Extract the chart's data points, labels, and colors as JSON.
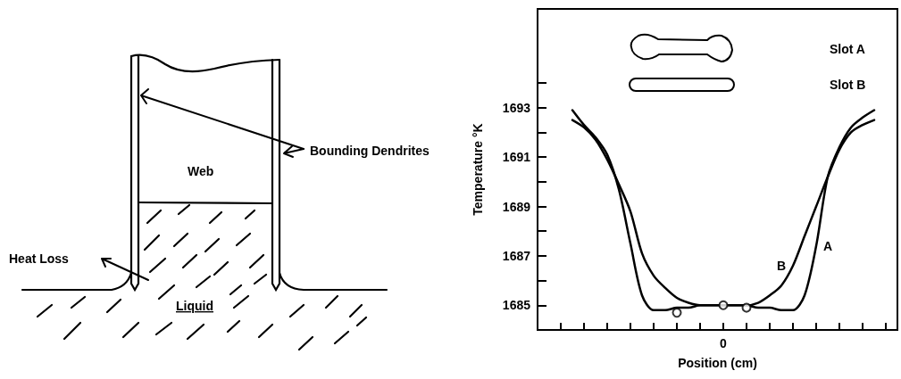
{
  "chart_data": [
    {
      "type": "other",
      "annotations": [
        "Bounding Dendrites",
        "Web",
        "Heat Loss",
        "Liquid"
      ]
    },
    {
      "type": "line",
      "ylabel": "Temperature °K",
      "xlabel": "Position (cm)",
      "annotations": [
        "Slot A",
        "Slot B"
      ],
      "categories": [
        null,
        null,
        null,
        null,
        null,
        null,
        null,
        null,
        null,
        null,
        null,
        null,
        null,
        null,
        null,
        null,
        "0",
        null,
        null,
        null,
        null,
        null,
        null,
        null,
        null,
        null,
        null,
        null,
        null,
        null,
        null,
        null
      ],
      "ylim": [
        1684,
        1697
      ],
      "yticks": [
        1685,
        {
          "value": 1686,
          "label": null
        },
        1687,
        {
          "value": 1688,
          "label": null
        },
        1689,
        {
          "value": 1690,
          "label": null
        },
        1691,
        {
          "value": 1692,
          "label": null
        },
        1693,
        {
          "value": 1694,
          "label": null
        }
      ],
      "grid": false,
      "legend": false,
      "marker": "none",
      "line_style": "solid",
      "series": [
        {
          "name": "A",
          "color": "#000000",
          "values": [
            null,
            null,
            null,
            1692.9,
            1692.3,
            1691.8,
            1691.1,
            1689.7,
            1687.5,
            1685.4,
            1684.8,
            1684.8,
            1684.9,
            1684.9,
            1685.0,
            1685.0,
            1685.0,
            1685.0,
            1685.0,
            1684.9,
            1684.9,
            1684.8,
            1684.8,
            1685.4,
            1687.4,
            1690.2,
            1691.4,
            1692.2,
            1692.6,
            1692.9,
            null,
            null
          ]
        },
        {
          "name": "B",
          "color": "#000000",
          "values": [
            null,
            null,
            null,
            1692.5,
            1692.2,
            1691.7,
            1690.9,
            1689.9,
            1688.8,
            1687.1,
            1686.2,
            1685.7,
            1685.3,
            1685.1,
            1685.0,
            1685.0,
            1685.0,
            1685.0,
            1685.0,
            1685.1,
            1685.4,
            1685.8,
            1686.6,
            1687.8,
            1689.0,
            1690.2,
            1691.3,
            1692.0,
            1692.3,
            1692.5,
            null,
            null
          ]
        },
        {
          "type": "scatter",
          "marker": "circle",
          "color": "#000000",
          "values": [
            null,
            null,
            null,
            null,
            null,
            null,
            null,
            null,
            null,
            null,
            null,
            null,
            1684.7,
            null,
            null,
            null,
            1685.0,
            null,
            1684.9,
            null,
            null,
            null,
            null,
            null,
            null,
            null,
            null,
            null,
            null,
            null,
            null,
            null
          ]
        }
      ]
    }
  ]
}
